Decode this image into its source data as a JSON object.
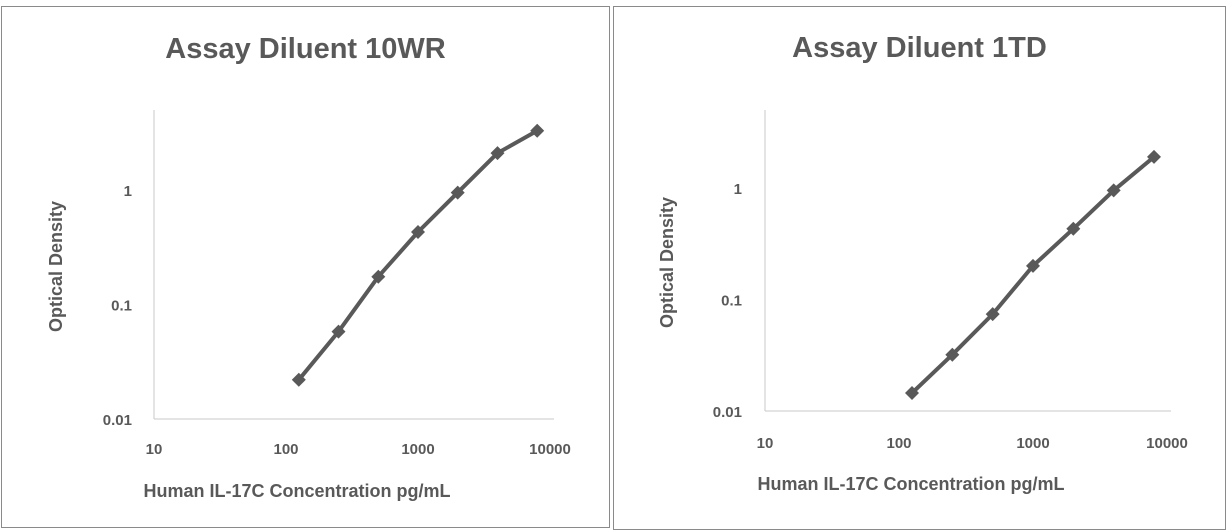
{
  "chart_data": [
    {
      "type": "line",
      "title": "Assay Diluent 10WR",
      "xlabel": "Human IL-17C Concentration pg/mL",
      "ylabel": "Optical Density",
      "x_scale": "log",
      "y_scale": "log",
      "xlim": [
        10,
        10000
      ],
      "ylim": [
        0.01,
        5
      ],
      "x_ticks": [
        "10",
        "100",
        "1000",
        "10000"
      ],
      "y_ticks": [
        "0.01",
        "0.1",
        "1"
      ],
      "grid": false,
      "legend": "none",
      "line_color": "#595959",
      "series": [
        {
          "x": [
            125,
            250,
            500,
            1000,
            2000,
            4000,
            8000
          ],
          "y": [
            0.022,
            0.058,
            0.175,
            0.43,
            0.95,
            2.1,
            3.3
          ]
        }
      ]
    },
    {
      "type": "line",
      "title": "Assay Diluent 1TD",
      "xlabel": "Human IL-17C Concentration pg/mL",
      "ylabel": "Optical Density",
      "x_scale": "log",
      "y_scale": "log",
      "xlim": [
        10,
        10000
      ],
      "ylim": [
        0.01,
        5
      ],
      "x_ticks": [
        "10",
        "100",
        "1000",
        "10000"
      ],
      "y_ticks": [
        "0.01",
        "0.1",
        "1"
      ],
      "grid": false,
      "legend": "none",
      "line_color": "#595959",
      "series": [
        {
          "x": [
            125,
            250,
            500,
            1000,
            2000,
            4000,
            8000
          ],
          "y": [
            0.0145,
            0.032,
            0.074,
            0.2,
            0.43,
            0.95,
            1.9
          ]
        }
      ]
    }
  ]
}
